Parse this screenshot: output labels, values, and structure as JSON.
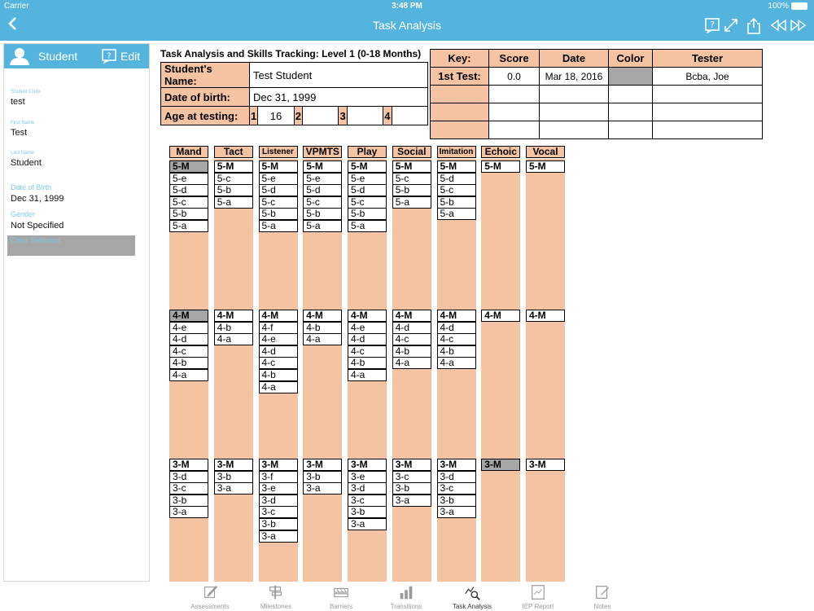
{
  "status": {
    "carrier": "Carrier",
    "time": "3:48 PM",
    "battery": "100%"
  },
  "nav": {
    "title": "Task Analysis"
  },
  "left": {
    "header": "Student",
    "edit": "Edit",
    "fields": [
      {
        "label": "Student Code",
        "value": "test",
        "big": false
      },
      {
        "label": "First Name",
        "value": "Test",
        "big": false
      },
      {
        "label": "Last Name",
        "value": "Student",
        "big": false
      },
      {
        "label": "Date of Birth",
        "value": "Dec 31, 1999",
        "big": true
      },
      {
        "label": "Gender",
        "value": "Not Specified",
        "big": true
      }
    ],
    "color_selection": "Color Selection"
  },
  "title": "Task Analysis and Skills Tracking: Level 1 (0-18 Months)",
  "info": {
    "name_label": "Student's Name:",
    "name_value": "Test Student",
    "dob_label": "Date of birth:",
    "dob_value": "Dec 31, 1999",
    "age_label": "Age at testing:",
    "age": [
      {
        "n": "1",
        "v": "16"
      },
      {
        "n": "2",
        "v": ""
      },
      {
        "n": "3",
        "v": ""
      },
      {
        "n": "4",
        "v": ""
      }
    ]
  },
  "key": {
    "headers": [
      "Key:",
      "Score",
      "Date",
      "Color",
      "Tester"
    ],
    "rows": [
      [
        "1st Test:",
        "0.0",
        "Mar 18, 2016",
        "",
        "Bcba, Joe"
      ],
      [
        "",
        "",
        "",
        "",
        ""
      ],
      [
        "",
        "",
        "",
        "",
        ""
      ],
      [
        "",
        "",
        "",
        "",
        ""
      ]
    ],
    "color_swatch": "#a6a6a6"
  },
  "grid": {
    "columns": [
      {
        "name": "Mand",
        "sections": [
          [
            "5-M",
            "5-e",
            "5-d",
            "5-c",
            "5-b",
            "5-a"
          ],
          [
            "4-M",
            "4-e",
            "4-d",
            "4-c",
            "4-b",
            "4-a"
          ],
          [
            "3-M",
            "3-d",
            "3-c",
            "3-b",
            "3-a"
          ]
        ],
        "gray": [
          "5-M",
          "4-M"
        ]
      },
      {
        "name": "Tact",
        "sections": [
          [
            "5-M",
            "5-c",
            "5-b",
            "5-a"
          ],
          [
            "4-M",
            "4-b",
            "4-a"
          ],
          [
            "3-M",
            "3-b",
            "3-a"
          ]
        ],
        "gray": []
      },
      {
        "name": "Listener",
        "sections": [
          [
            "5-M",
            "5-e",
            "5-d",
            "5-c",
            "5-b",
            "5-a"
          ],
          [
            "4-M",
            "4-f",
            "4-e",
            "4-d",
            "4-c",
            "4-b",
            "4-a"
          ],
          [
            "3-M",
            "3-f",
            "3-e",
            "3-d",
            "3-c",
            "3-b",
            "3-a"
          ]
        ],
        "gray": []
      },
      {
        "name": "VPMTS",
        "sections": [
          [
            "5-M",
            "5-e",
            "5-d",
            "5-c",
            "5-b",
            "5-a"
          ],
          [
            "4-M",
            "4-b",
            "4-a"
          ],
          [
            "3-M",
            "3-b",
            "3-a"
          ]
        ],
        "gray": []
      },
      {
        "name": "Play",
        "sections": [
          [
            "5-M",
            "5-e",
            "5-d",
            "5-c",
            "5-b",
            "5-a"
          ],
          [
            "4-M",
            "4-e",
            "4-d",
            "4-c",
            "4-b",
            "4-a"
          ],
          [
            "3-M",
            "3-e",
            "3-d",
            "3-c",
            "3-b",
            "3-a"
          ]
        ],
        "gray": []
      },
      {
        "name": "Social",
        "sections": [
          [
            "5-M",
            "5-c",
            "5-b",
            "5-a"
          ],
          [
            "4-M",
            "4-d",
            "4-c",
            "4-b",
            "4-a"
          ],
          [
            "3-M",
            "3-c",
            "3-b",
            "3-a"
          ]
        ],
        "gray": []
      },
      {
        "name": "Imitation",
        "sections": [
          [
            "5-M",
            "5-d",
            "5-c",
            "5-b",
            "5-a"
          ],
          [
            "4-M",
            "4-d",
            "4-c",
            "4-b",
            "4-a"
          ],
          [
            "3-M",
            "3-d",
            "3-c",
            "3-b",
            "3-a"
          ]
        ],
        "gray": []
      },
      {
        "name": "Echoic",
        "sections": [
          [
            "5-M"
          ],
          [
            "4-M"
          ],
          [
            "3-M"
          ]
        ],
        "gray": [
          "3-M"
        ]
      },
      {
        "name": "Vocal",
        "sections": [
          [
            "5-M"
          ],
          [
            "4-M"
          ],
          [
            "3-M"
          ]
        ],
        "gray": []
      }
    ]
  },
  "tabs": [
    {
      "label": "Assessments",
      "icon": "pencil-icon"
    },
    {
      "label": "Milestones",
      "icon": "signpost-icon"
    },
    {
      "label": "Barriers",
      "icon": "barrier-icon"
    },
    {
      "label": "Transitions",
      "icon": "bar-chart-icon"
    },
    {
      "label": "Task Analysis",
      "icon": "magnifier-chart-icon"
    },
    {
      "label": "IEP Report",
      "icon": "report-icon"
    },
    {
      "label": "Notes",
      "icon": "notes-icon"
    }
  ],
  "active_tab": 4
}
